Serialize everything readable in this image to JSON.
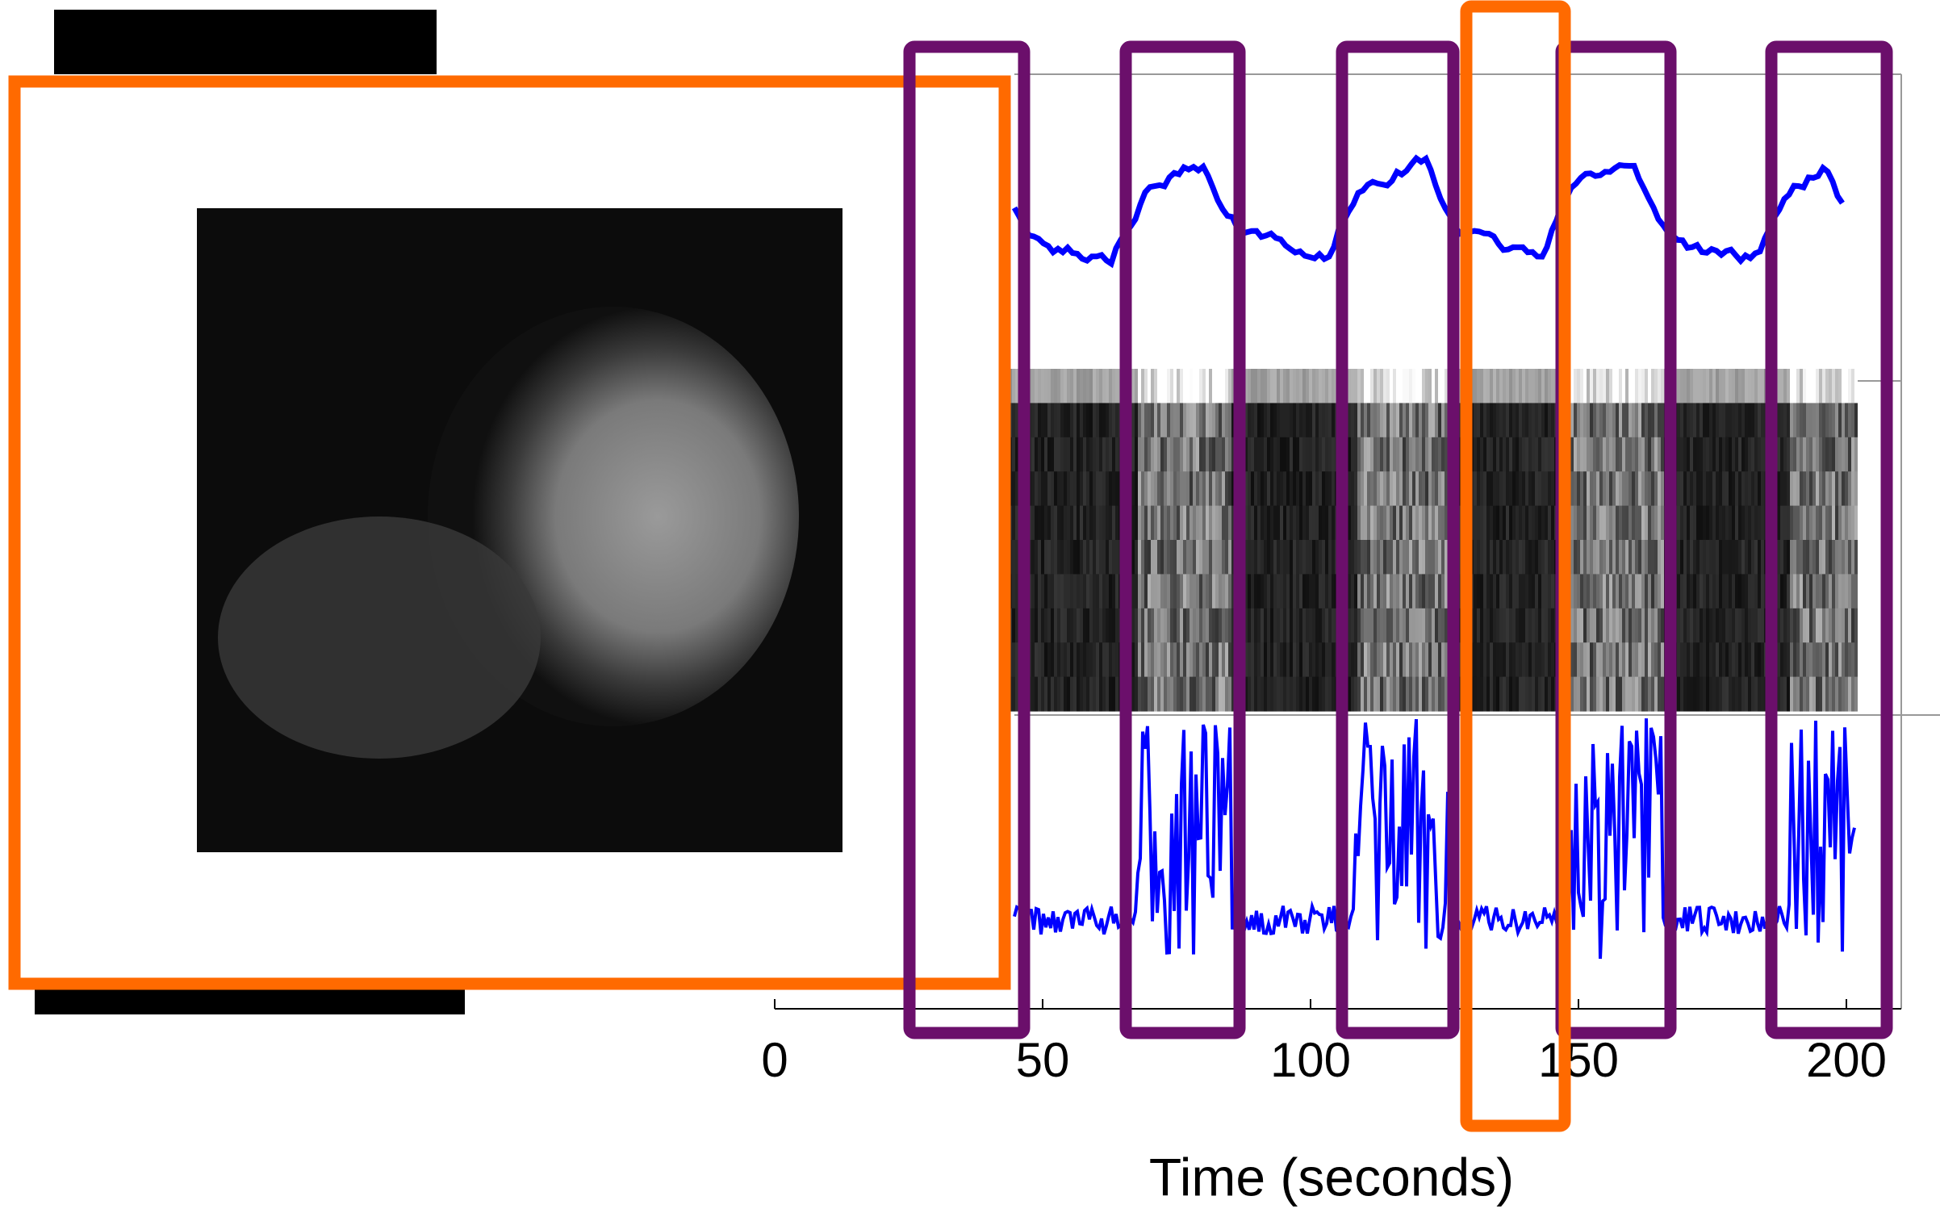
{
  "chart_data": {
    "type": "timeline",
    "xlabel": "Time (seconds)",
    "xlim": [
      0,
      210
    ],
    "xticks": [
      0,
      50,
      100,
      150,
      200
    ]
  }
}
